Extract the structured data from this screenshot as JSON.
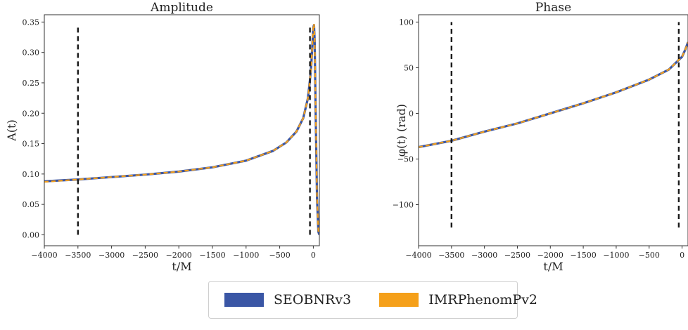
{
  "chart_data": [
    {
      "type": "line",
      "title": "Amplitude",
      "xlabel": "t/M",
      "ylabel": "A(t)",
      "xlim": [
        -4000,
        90
      ],
      "ylim": [
        -0.018,
        0.362
      ],
      "xticks": [
        -4000,
        -3500,
        -3000,
        -2500,
        -2000,
        -1500,
        -1000,
        -500,
        0
      ],
      "xtick_labels": [
        "−4000",
        "−3500",
        "−3000",
        "−2500",
        "−2000",
        "−1500",
        "−1000",
        "−500",
        "0"
      ],
      "yticks": [
        0.0,
        0.05,
        0.1,
        0.15,
        0.2,
        0.25,
        0.3,
        0.35
      ],
      "ytick_labels": [
        "0.00",
        "0.05",
        "0.10",
        "0.15",
        "0.20",
        "0.25",
        "0.30",
        "0.35"
      ],
      "grid": false,
      "vlines": [
        {
          "x": -3500,
          "ymin": 0.0,
          "ymax": 0.346,
          "style": "dashed"
        },
        {
          "x": -50,
          "ymin": 0.0,
          "ymax": 0.346,
          "style": "dashed"
        }
      ],
      "series": [
        {
          "name": "SEOBNRv3",
          "color": "#3a56a5",
          "style": "solid",
          "x": [
            -4000,
            -3500,
            -3000,
            -2500,
            -2000,
            -1500,
            -1000,
            -600,
            -400,
            -250,
            -150,
            -80,
            -50,
            -30,
            -15,
            0,
            10,
            20,
            35,
            55,
            75,
            90
          ],
          "y": [
            0.088,
            0.091,
            0.095,
            0.099,
            0.104,
            0.111,
            0.122,
            0.138,
            0.152,
            0.17,
            0.192,
            0.225,
            0.255,
            0.28,
            0.312,
            0.341,
            0.345,
            0.32,
            0.2,
            0.06,
            0.005,
            0.0
          ]
        },
        {
          "name": "IMRPhenomPv2",
          "color": "#f5a01a",
          "style": "dashed",
          "x": [
            -4000,
            -3500,
            -3000,
            -2500,
            -2000,
            -1500,
            -1000,
            -600,
            -400,
            -250,
            -150,
            -80,
            -50,
            -30,
            -15,
            0,
            10,
            20,
            35,
            55,
            75,
            90
          ],
          "y": [
            0.087,
            0.091,
            0.095,
            0.099,
            0.104,
            0.111,
            0.122,
            0.138,
            0.152,
            0.17,
            0.192,
            0.225,
            0.255,
            0.28,
            0.312,
            0.342,
            0.347,
            0.322,
            0.202,
            0.062,
            0.006,
            0.0
          ]
        }
      ]
    },
    {
      "type": "line",
      "title": "Phase",
      "xlabel": "t/M",
      "ylabel": "φ(t) (rad)",
      "xlim": [
        -4000,
        90
      ],
      "ylim": [
        -145,
        108
      ],
      "xticks": [
        -4000,
        -3500,
        -3000,
        -2500,
        -2000,
        -1500,
        -1000,
        -500,
        0
      ],
      "xtick_labels": [
        "−4000",
        "−3500",
        "−3000",
        "−2500",
        "−2000",
        "−1500",
        "−1000",
        "−500",
        "0"
      ],
      "yticks": [
        -100,
        -50,
        0,
        50,
        100
      ],
      "ytick_labels": [
        "−100",
        "−50",
        "0",
        "50",
        "100"
      ],
      "grid": false,
      "vlines": [
        {
          "x": -3500,
          "ymin": -125,
          "ymax": 100,
          "style": "dashed"
        },
        {
          "x": -50,
          "ymin": -125,
          "ymax": 100,
          "style": "dashed"
        }
      ],
      "series": [
        {
          "name": "SEOBNRv3",
          "color": "#3a56a5",
          "style": "solid",
          "x": [
            -4000,
            -3500,
            -3000,
            -2500,
            -2000,
            -1500,
            -1000,
            -500,
            -200,
            0,
            50,
            90
          ],
          "y": [
            -37,
            -30,
            -20,
            -11,
            0,
            11,
            23,
            37,
            48,
            62,
            70,
            78
          ]
        },
        {
          "name": "IMRPhenomPv2",
          "color": "#f5a01a",
          "style": "dashed",
          "x": [
            -4000,
            -3500,
            -3000,
            -2500,
            -2000,
            -1500,
            -1000,
            -500,
            -200,
            0,
            50,
            90
          ],
          "y": [
            -37,
            -30,
            -20,
            -11,
            0,
            11,
            23,
            37,
            48,
            62,
            70,
            78
          ]
        }
      ]
    }
  ],
  "legend": [
    {
      "label": "SEOBNRv3",
      "color": "#3a56a5"
    },
    {
      "label": "IMRPhenomPv2",
      "color": "#f5a01a"
    }
  ]
}
